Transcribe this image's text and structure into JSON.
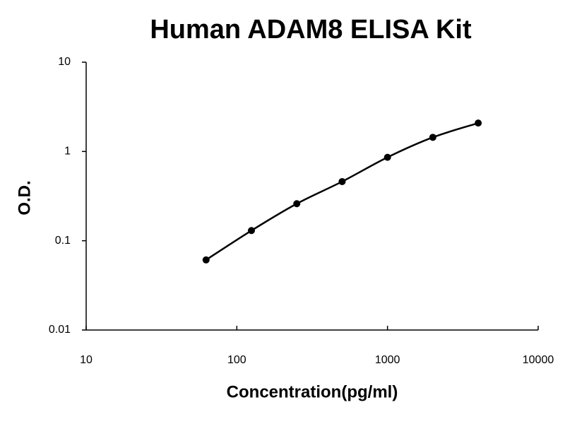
{
  "chart_data": {
    "type": "scatter",
    "title": "Human ADAM8 ELISA Kit",
    "x_label": "Concentration(pg/ml)",
    "y_label": "O.D.",
    "x": [
      62.5,
      125,
      250,
      500,
      1000,
      2000,
      4000
    ],
    "values": [
      0.061,
      0.13,
      0.26,
      0.46,
      0.86,
      1.44,
      2.08
    ],
    "color": "#000000",
    "line": true,
    "xscale": "log",
    "yscale": "log",
    "xlim": [
      10,
      10000
    ],
    "xticks": [
      10,
      100,
      1000,
      10000
    ],
    "ylim": [
      0.01,
      10
    ],
    "yticks": [
      0.01,
      0.1,
      1,
      10
    ],
    "grid": false
  }
}
